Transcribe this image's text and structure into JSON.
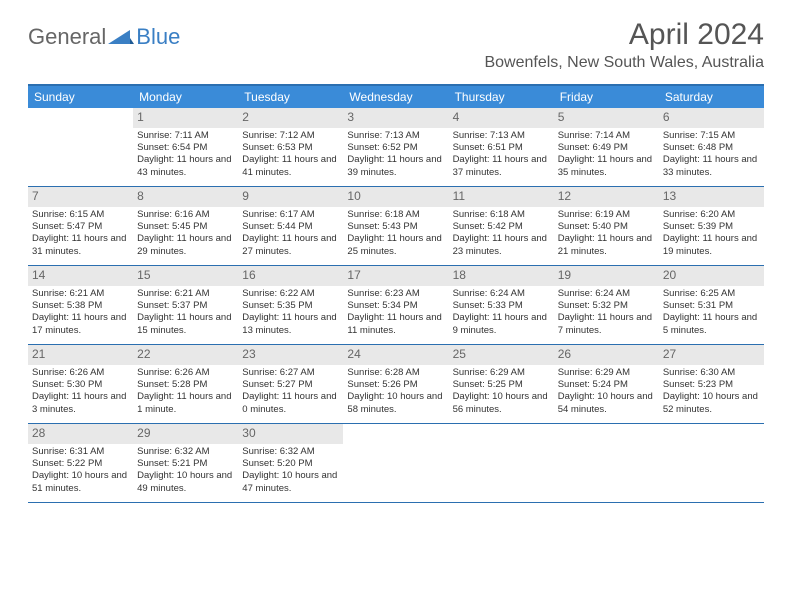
{
  "logo": {
    "text1": "General",
    "text2": "Blue"
  },
  "title": "April 2024",
  "location": "Bowenfels, New South Wales, Australia",
  "dayNames": [
    "Sunday",
    "Monday",
    "Tuesday",
    "Wednesday",
    "Thursday",
    "Friday",
    "Saturday"
  ],
  "colors": {
    "headerBlue": "#3a8bd8",
    "borderBlue": "#2b6fb0",
    "dayNumBg": "#e8e8e8",
    "logoBlue": "#3a7fc4"
  },
  "typography": {
    "titleSize": 30,
    "locationSize": 16,
    "dayHeaderSize": 12,
    "cellSize": 9.5
  },
  "layout": {
    "cols": 7,
    "rows": 5,
    "startOffset": 1
  },
  "days": [
    {
      "n": 1,
      "sunrise": "7:11 AM",
      "sunset": "6:54 PM",
      "daylight": "11 hours and 43 minutes."
    },
    {
      "n": 2,
      "sunrise": "7:12 AM",
      "sunset": "6:53 PM",
      "daylight": "11 hours and 41 minutes."
    },
    {
      "n": 3,
      "sunrise": "7:13 AM",
      "sunset": "6:52 PM",
      "daylight": "11 hours and 39 minutes."
    },
    {
      "n": 4,
      "sunrise": "7:13 AM",
      "sunset": "6:51 PM",
      "daylight": "11 hours and 37 minutes."
    },
    {
      "n": 5,
      "sunrise": "7:14 AM",
      "sunset": "6:49 PM",
      "daylight": "11 hours and 35 minutes."
    },
    {
      "n": 6,
      "sunrise": "7:15 AM",
      "sunset": "6:48 PM",
      "daylight": "11 hours and 33 minutes."
    },
    {
      "n": 7,
      "sunrise": "6:15 AM",
      "sunset": "5:47 PM",
      "daylight": "11 hours and 31 minutes."
    },
    {
      "n": 8,
      "sunrise": "6:16 AM",
      "sunset": "5:45 PM",
      "daylight": "11 hours and 29 minutes."
    },
    {
      "n": 9,
      "sunrise": "6:17 AM",
      "sunset": "5:44 PM",
      "daylight": "11 hours and 27 minutes."
    },
    {
      "n": 10,
      "sunrise": "6:18 AM",
      "sunset": "5:43 PM",
      "daylight": "11 hours and 25 minutes."
    },
    {
      "n": 11,
      "sunrise": "6:18 AM",
      "sunset": "5:42 PM",
      "daylight": "11 hours and 23 minutes."
    },
    {
      "n": 12,
      "sunrise": "6:19 AM",
      "sunset": "5:40 PM",
      "daylight": "11 hours and 21 minutes."
    },
    {
      "n": 13,
      "sunrise": "6:20 AM",
      "sunset": "5:39 PM",
      "daylight": "11 hours and 19 minutes."
    },
    {
      "n": 14,
      "sunrise": "6:21 AM",
      "sunset": "5:38 PM",
      "daylight": "11 hours and 17 minutes."
    },
    {
      "n": 15,
      "sunrise": "6:21 AM",
      "sunset": "5:37 PM",
      "daylight": "11 hours and 15 minutes."
    },
    {
      "n": 16,
      "sunrise": "6:22 AM",
      "sunset": "5:35 PM",
      "daylight": "11 hours and 13 minutes."
    },
    {
      "n": 17,
      "sunrise": "6:23 AM",
      "sunset": "5:34 PM",
      "daylight": "11 hours and 11 minutes."
    },
    {
      "n": 18,
      "sunrise": "6:24 AM",
      "sunset": "5:33 PM",
      "daylight": "11 hours and 9 minutes."
    },
    {
      "n": 19,
      "sunrise": "6:24 AM",
      "sunset": "5:32 PM",
      "daylight": "11 hours and 7 minutes."
    },
    {
      "n": 20,
      "sunrise": "6:25 AM",
      "sunset": "5:31 PM",
      "daylight": "11 hours and 5 minutes."
    },
    {
      "n": 21,
      "sunrise": "6:26 AM",
      "sunset": "5:30 PM",
      "daylight": "11 hours and 3 minutes."
    },
    {
      "n": 22,
      "sunrise": "6:26 AM",
      "sunset": "5:28 PM",
      "daylight": "11 hours and 1 minute."
    },
    {
      "n": 23,
      "sunrise": "6:27 AM",
      "sunset": "5:27 PM",
      "daylight": "11 hours and 0 minutes."
    },
    {
      "n": 24,
      "sunrise": "6:28 AM",
      "sunset": "5:26 PM",
      "daylight": "10 hours and 58 minutes."
    },
    {
      "n": 25,
      "sunrise": "6:29 AM",
      "sunset": "5:25 PM",
      "daylight": "10 hours and 56 minutes."
    },
    {
      "n": 26,
      "sunrise": "6:29 AM",
      "sunset": "5:24 PM",
      "daylight": "10 hours and 54 minutes."
    },
    {
      "n": 27,
      "sunrise": "6:30 AM",
      "sunset": "5:23 PM",
      "daylight": "10 hours and 52 minutes."
    },
    {
      "n": 28,
      "sunrise": "6:31 AM",
      "sunset": "5:22 PM",
      "daylight": "10 hours and 51 minutes."
    },
    {
      "n": 29,
      "sunrise": "6:32 AM",
      "sunset": "5:21 PM",
      "daylight": "10 hours and 49 minutes."
    },
    {
      "n": 30,
      "sunrise": "6:32 AM",
      "sunset": "5:20 PM",
      "daylight": "10 hours and 47 minutes."
    }
  ],
  "labels": {
    "sunrise": "Sunrise:",
    "sunset": "Sunset:",
    "daylight": "Daylight:"
  }
}
